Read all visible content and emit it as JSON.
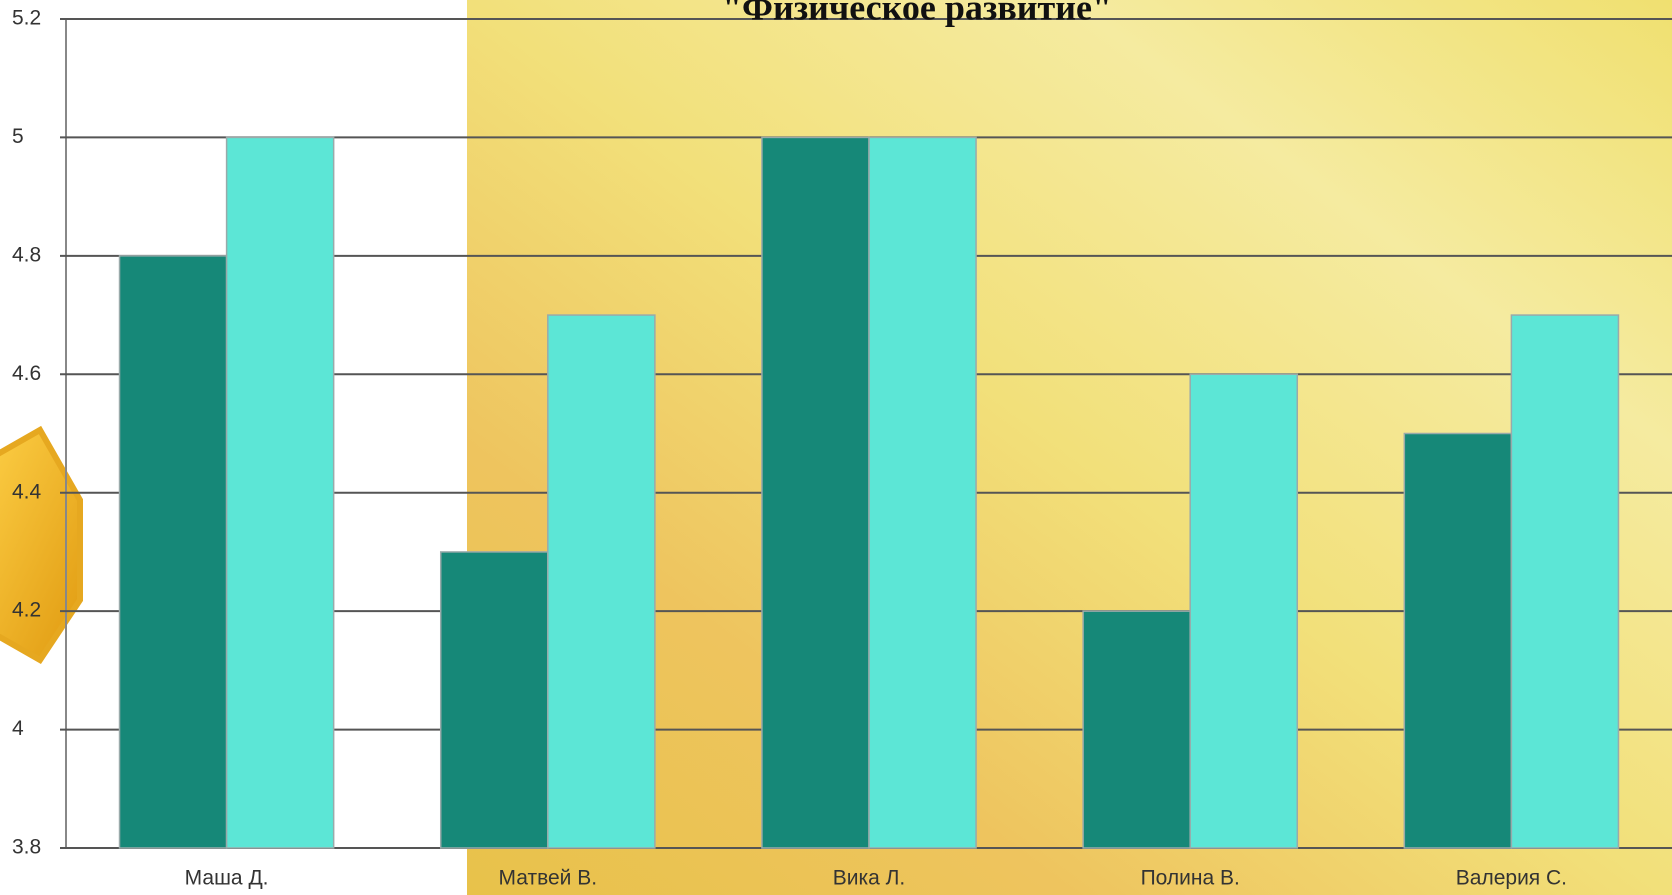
{
  "chart_data": {
    "type": "bar",
    "title": "\"Физическое  развитие\"",
    "categories": [
      "Маша Д.",
      "Матвей В.",
      "Вика Л.",
      "Полина В.",
      "Валерия С."
    ],
    "series": [
      {
        "color": "#168878",
        "values": [
          4.8,
          4.3,
          5,
          4.2,
          4.5
        ]
      },
      {
        "color": "#5ce6d6",
        "values": [
          5,
          4.7,
          5,
          4.6,
          4.7
        ]
      }
    ],
    "ylim": [
      3.8,
      5.2
    ],
    "yticks": [
      3.8,
      4,
      4.2,
      4.4,
      4.6,
      4.8,
      5,
      5.2
    ],
    "grid": true
  }
}
